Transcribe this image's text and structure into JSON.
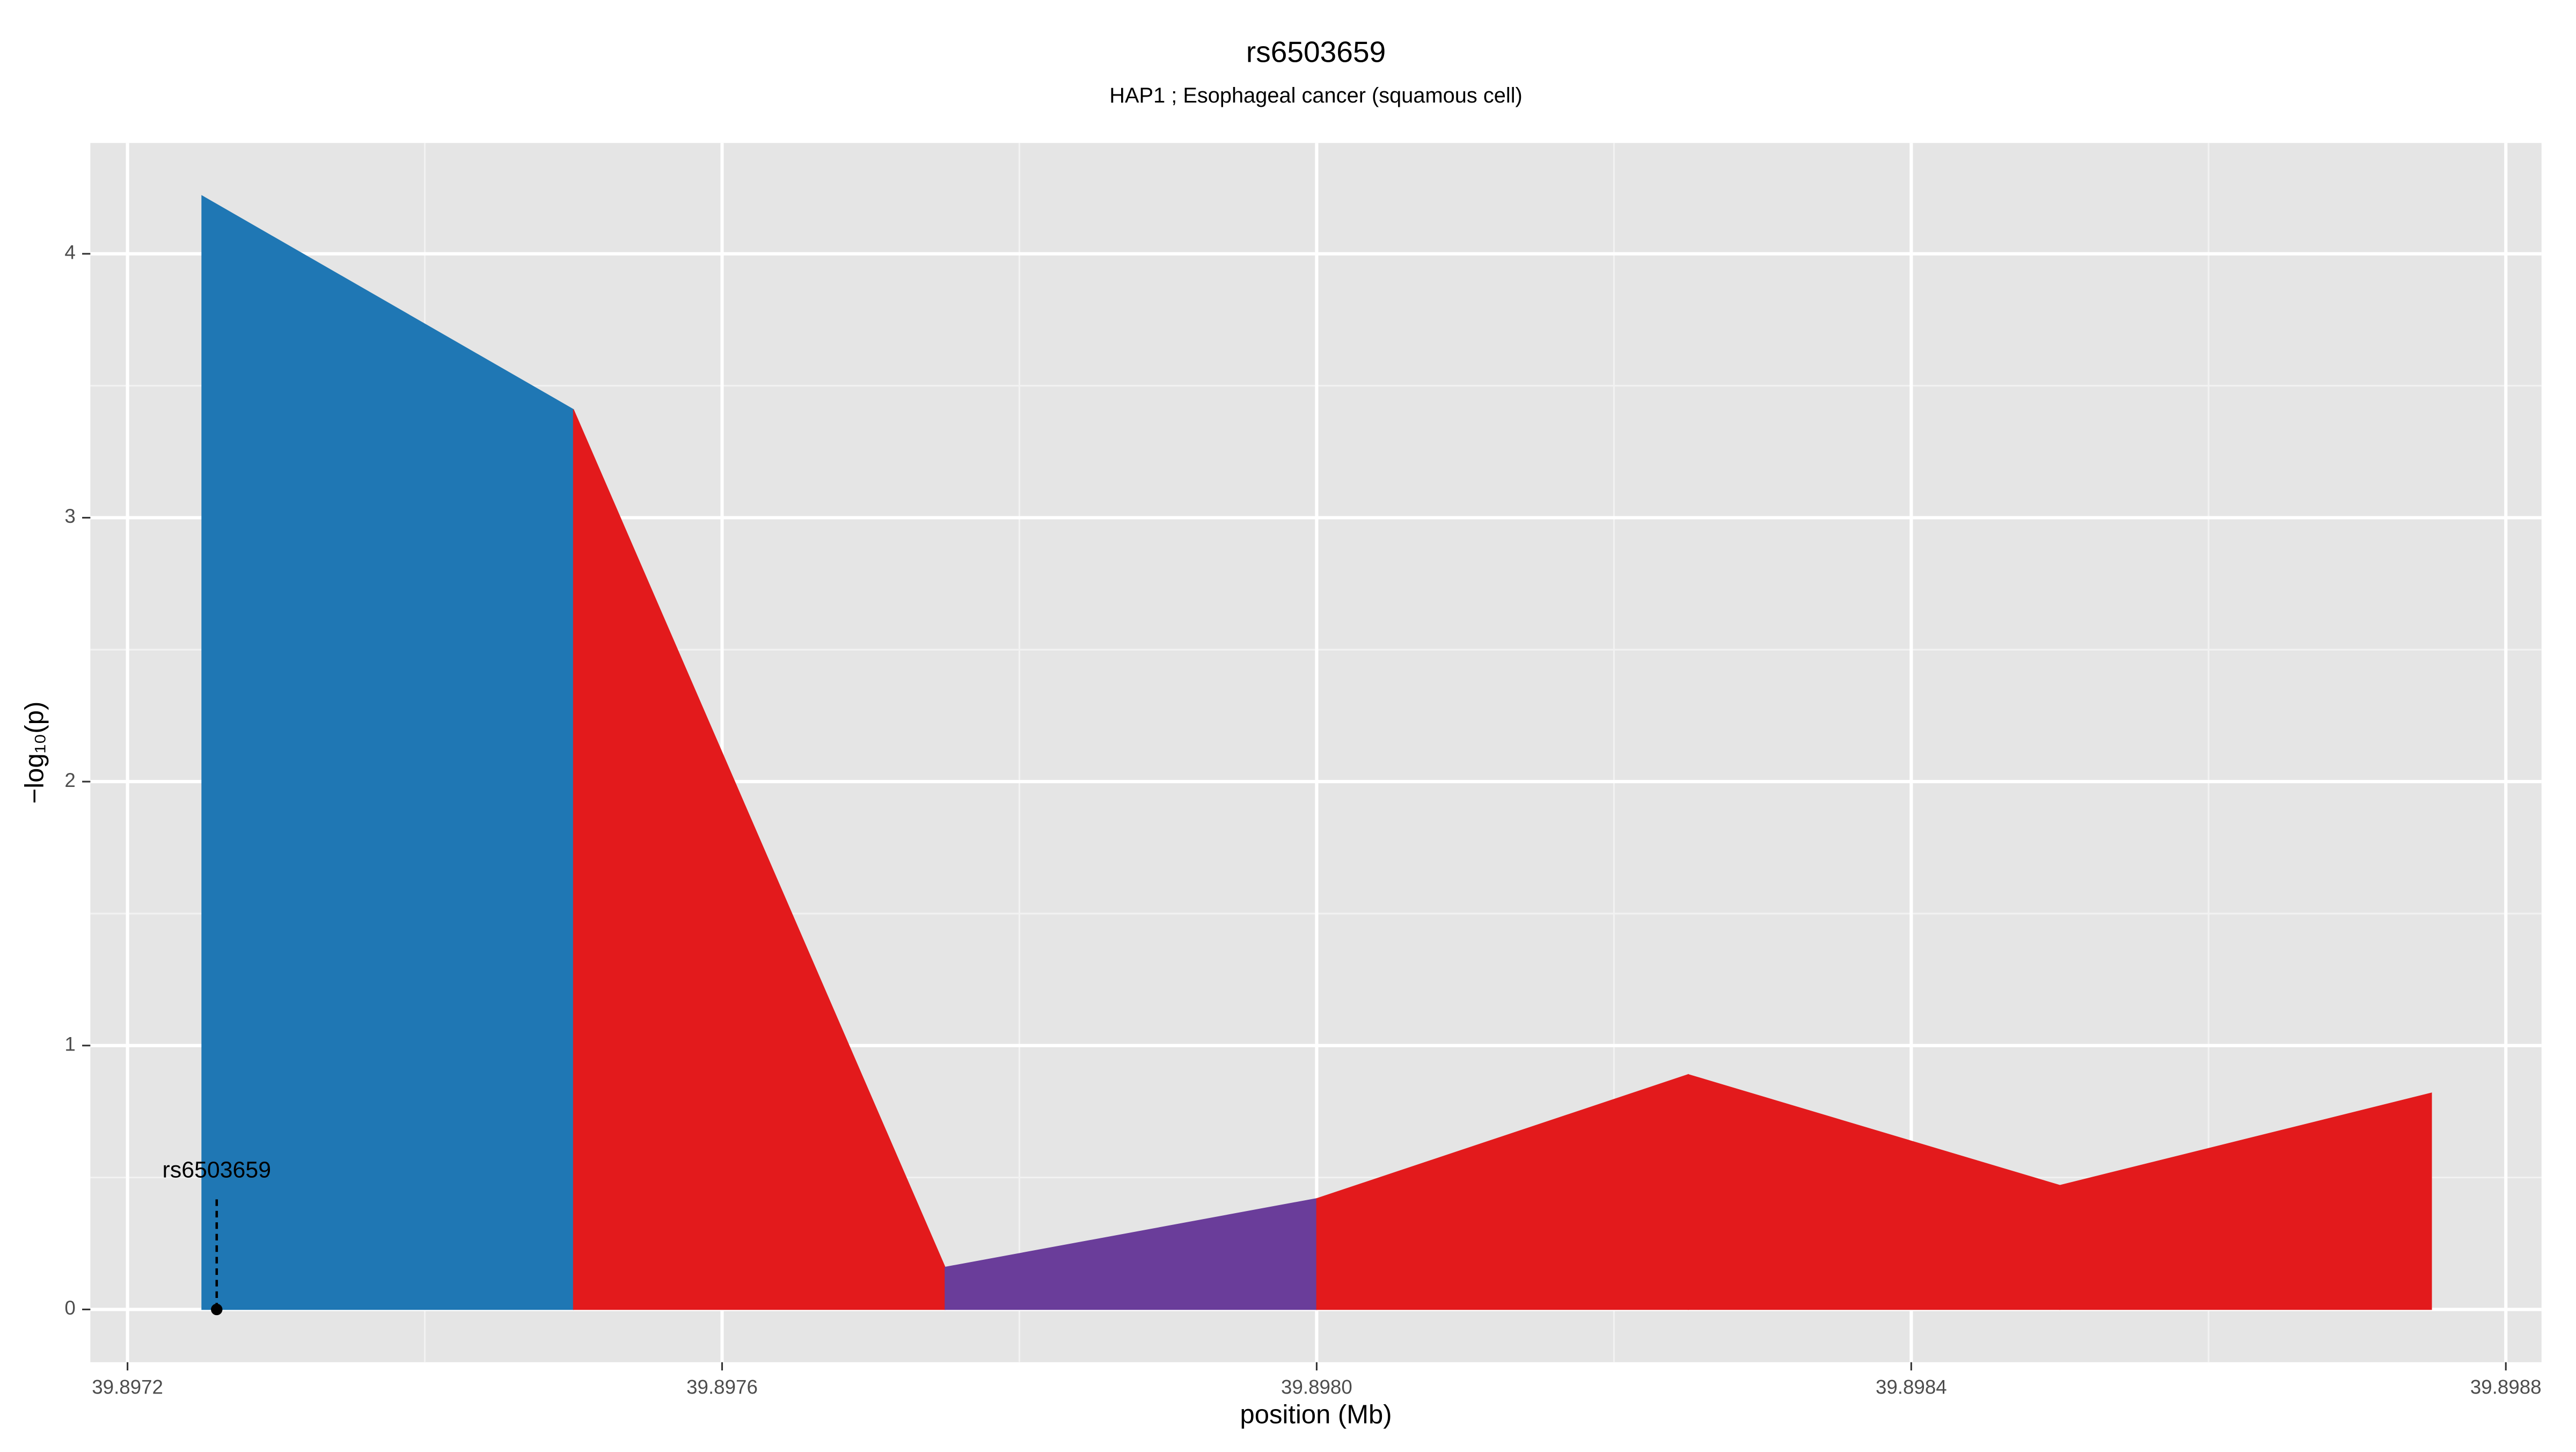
{
  "chart_data": {
    "type": "area",
    "title": "rs6503659",
    "subtitle": "HAP1 ; Esophageal cancer (squamous cell)",
    "x_label": "position (Mb)",
    "y_label": "−log₁₀(p)",
    "x": [
      39.89725,
      39.8975,
      39.89775,
      39.898,
      39.89825,
      39.8985,
      39.89875
    ],
    "values": [
      4.22,
      3.41,
      0.16,
      0.42,
      0.89,
      0.47,
      0.82
    ],
    "segment_colors": [
      "#1f77b4",
      "#e31a1c",
      "#6a3d9a",
      "#e31a1c",
      "#e31a1c",
      "#e31a1c"
    ],
    "xlim": [
      39.897175,
      39.898824
    ],
    "ylim": [
      -0.2,
      4.42
    ],
    "xticks": [
      39.8972,
      39.8976,
      {
        "value": 39.898,
        "label": "39.8980"
      },
      39.8984,
      39.8988
    ],
    "yticks": [
      0,
      1,
      2,
      3,
      4
    ],
    "grid": true,
    "annotation": {
      "label": "rs6503659",
      "x": 39.89726,
      "y": 0
    }
  }
}
